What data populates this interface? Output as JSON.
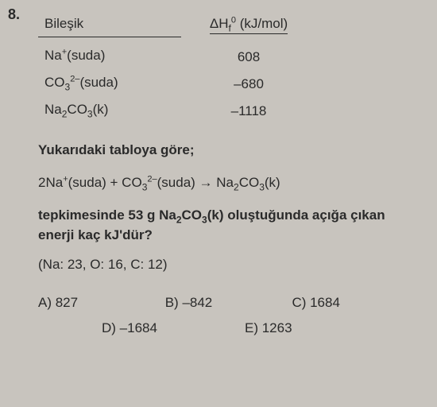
{
  "question_number": "8.",
  "table": {
    "headers": {
      "compound": "Bileşik",
      "enthalpy": "ΔH"
    },
    "enthalpy_sub": "f",
    "enthalpy_sup": "0",
    "enthalpy_unit": " (kJ/mol)",
    "rows": [
      {
        "compound_html": "Na<sup>+</sup>(suda)",
        "value": "608"
      },
      {
        "compound_html": "CO<sub>3</sub><sup>2–</sup>(suda)",
        "value": "–680"
      },
      {
        "compound_html": "Na<sub>2</sub>CO<sub>3</sub>(k)",
        "value": "–1118"
      }
    ]
  },
  "intro": "Yukarıdaki tabloya göre;",
  "reaction": "2Na<sup>+</sup>(suda) + CO<sub>3</sub><sup>2–</sup>(suda) → Na<sub>2</sub>CO<sub>3</sub>(k)",
  "question_p1": "tepkimesinde 53 g Na",
  "question_p2": "CO",
  "question_p3": "(k) oluştuğunda açığa çıkan enerji kaç kJ'dür?",
  "atomic": "(Na: 23, O: 16, C: 12)",
  "options": {
    "a": "A) 827",
    "b": "B) –842",
    "c": "C) 1684",
    "d": "D) –1684",
    "e": "E) 1263"
  },
  "colors": {
    "background": "#c8c4be",
    "text": "#2a2a2a"
  }
}
